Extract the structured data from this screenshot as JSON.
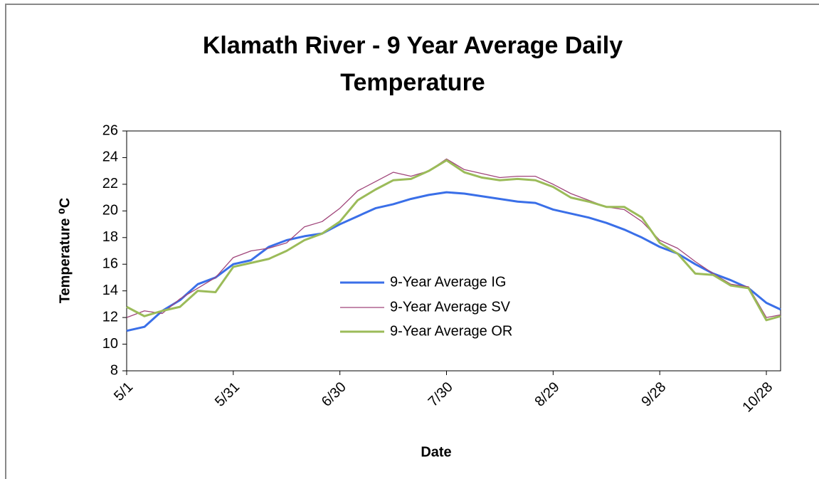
{
  "chart_data": {
    "type": "line",
    "title": "Klamath River - 9 Year Average Daily Temperature",
    "x_label": "Date",
    "y_label": "Temperature ⁰C",
    "x": [
      "5/1",
      "5/6",
      "5/11",
      "5/16",
      "5/21",
      "5/26",
      "5/31",
      "6/5",
      "6/10",
      "6/15",
      "6/20",
      "6/25",
      "6/30",
      "7/5",
      "7/10",
      "7/15",
      "7/20",
      "7/25",
      "7/30",
      "8/4",
      "8/9",
      "8/14",
      "8/19",
      "8/24",
      "8/29",
      "9/3",
      "9/8",
      "9/13",
      "9/18",
      "9/23",
      "9/28",
      "10/3",
      "10/8",
      "10/13",
      "10/18",
      "10/23",
      "10/28",
      "11/1"
    ],
    "xlim": [
      "5/1",
      "11/1"
    ],
    "xticks": [
      "5/1",
      "5/31",
      "6/30",
      "7/30",
      "8/29",
      "9/28",
      "10/28"
    ],
    "ylim": [
      8,
      26
    ],
    "yticks": [
      8,
      10,
      12,
      14,
      16,
      18,
      20,
      22,
      24,
      26
    ],
    "legend_position": "center",
    "series": [
      {
        "name": "9-Year Average IG",
        "color": "#3a6fe8",
        "values": [
          11.0,
          11.3,
          12.5,
          13.3,
          14.5,
          15.0,
          16.0,
          16.3,
          17.3,
          17.8,
          18.1,
          18.3,
          19.0,
          19.6,
          20.2,
          20.5,
          20.9,
          21.2,
          21.4,
          21.3,
          21.1,
          20.9,
          20.7,
          20.6,
          20.1,
          19.8,
          19.5,
          19.1,
          18.6,
          18.0,
          17.3,
          16.8,
          16.0,
          15.3,
          14.8,
          14.2,
          13.1,
          12.6
        ]
      },
      {
        "name": "9-Year Average SV",
        "color": "#a0457a",
        "values": [
          12.0,
          12.5,
          12.3,
          13.4,
          14.2,
          15.0,
          16.5,
          17.0,
          17.2,
          17.6,
          18.8,
          19.2,
          20.2,
          21.5,
          22.2,
          22.9,
          22.6,
          23.0,
          23.9,
          23.1,
          22.8,
          22.5,
          22.6,
          22.6,
          22.0,
          21.3,
          20.8,
          20.3,
          20.1,
          19.2,
          17.8,
          17.2,
          16.2,
          15.3,
          14.5,
          14.3,
          12.0,
          12.2
        ]
      },
      {
        "name": "9-Year Average OR",
        "color": "#9bbb59",
        "values": [
          12.8,
          12.1,
          12.5,
          12.8,
          14.0,
          13.9,
          15.8,
          16.1,
          16.4,
          17.0,
          17.8,
          18.3,
          19.2,
          20.8,
          21.6,
          22.3,
          22.4,
          23.0,
          23.8,
          22.9,
          22.5,
          22.3,
          22.4,
          22.3,
          21.8,
          21.0,
          20.7,
          20.3,
          20.3,
          19.5,
          17.6,
          16.8,
          15.3,
          15.2,
          14.4,
          14.2,
          11.8,
          12.1
        ]
      }
    ]
  }
}
